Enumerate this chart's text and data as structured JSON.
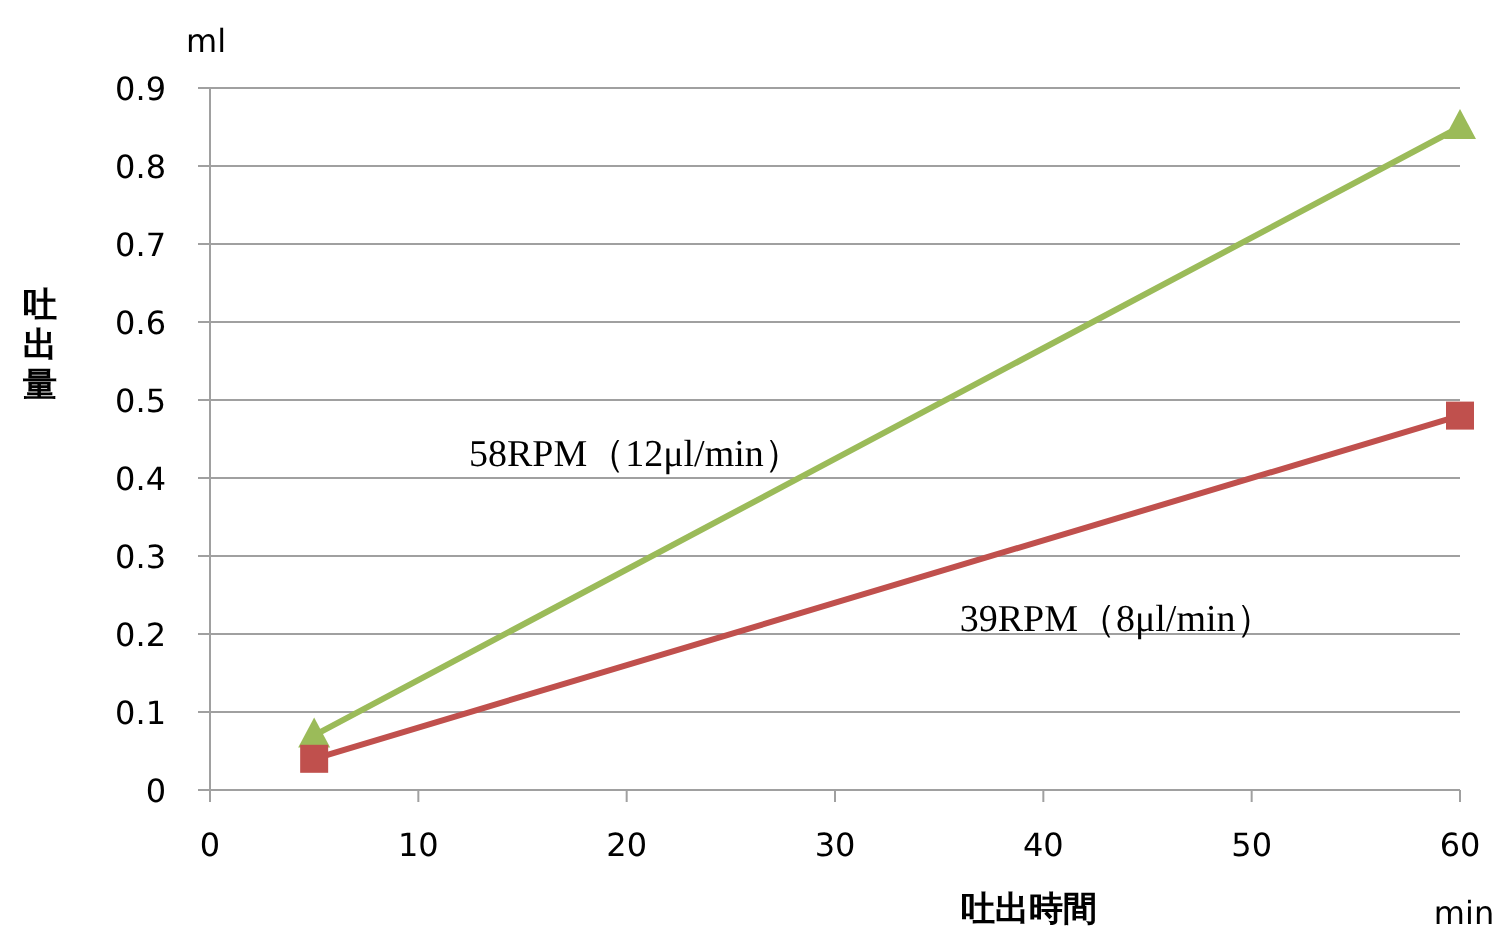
{
  "chart_data": {
    "type": "line",
    "ylabel": "吐出量",
    "xlabel": "吐出時間",
    "annotations": [
      "ml",
      "min"
    ],
    "xlim": [
      0,
      60
    ],
    "xticks": [
      0,
      10,
      20,
      30,
      40,
      50,
      60
    ],
    "ylim": [
      0,
      0.9
    ],
    "yticks": [
      0,
      0.1,
      0.2,
      0.3,
      0.4,
      0.5,
      0.6,
      0.7,
      0.8,
      0.9
    ],
    "grid": "y",
    "x": [
      5,
      60
    ],
    "series": [
      {
        "name": "58RPM（12μl/min）",
        "color": "#9bbb59",
        "marker": "triangle",
        "values": [
          0.07,
          0.85
        ]
      },
      {
        "name": "39RPM（8μl/min）",
        "color": "#c0504d",
        "marker": "square",
        "values": [
          0.04,
          0.48
        ]
      }
    ]
  }
}
